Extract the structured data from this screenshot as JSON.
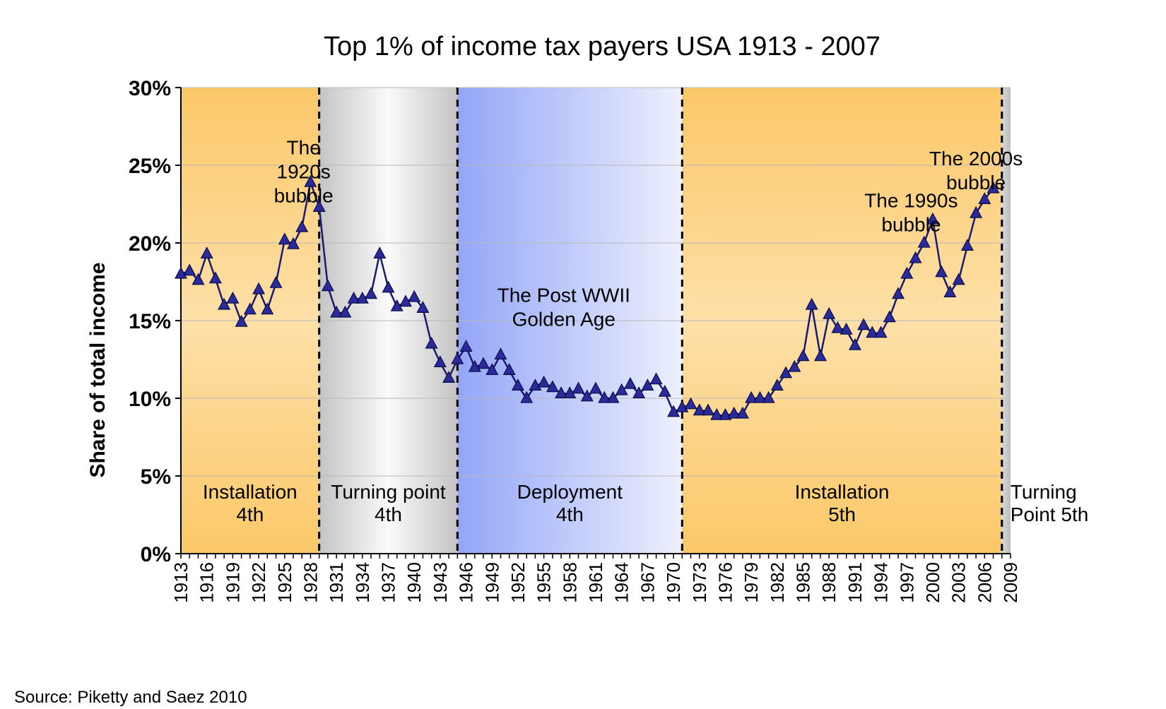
{
  "chart_data": {
    "type": "line",
    "title": "Top 1%  of income tax payers  USA 1913 - 2007",
    "ylabel": "Share of total income",
    "xlabel": "",
    "source": "Source: Piketty and Saez 2010",
    "ylim": [
      0,
      30
    ],
    "xlim": [
      1913,
      2009
    ],
    "yticks": [
      0,
      5,
      10,
      15,
      20,
      25,
      30
    ],
    "ytick_labels": [
      "0%",
      "5%",
      "10%",
      "15%",
      "20%",
      "25%",
      "30%"
    ],
    "xticks": [
      1913,
      1916,
      1919,
      1922,
      1925,
      1928,
      1931,
      1934,
      1937,
      1940,
      1943,
      1946,
      1949,
      1952,
      1955,
      1958,
      1961,
      1964,
      1967,
      1970,
      1973,
      1976,
      1979,
      1982,
      1985,
      1988,
      1991,
      1994,
      1997,
      2000,
      2003,
      2006,
      2009
    ],
    "grid": true,
    "series": [
      {
        "color": "#1a1a6e",
        "marker": "triangle",
        "marker_color": "#2a2a9a",
        "x": [
          1913,
          1914,
          1915,
          1916,
          1917,
          1918,
          1919,
          1920,
          1921,
          1922,
          1923,
          1924,
          1925,
          1926,
          1927,
          1928,
          1929,
          1930,
          1931,
          1932,
          1933,
          1934,
          1935,
          1936,
          1937,
          1938,
          1939,
          1940,
          1941,
          1942,
          1943,
          1944,
          1945,
          1946,
          1947,
          1948,
          1949,
          1950,
          1951,
          1952,
          1953,
          1954,
          1955,
          1956,
          1957,
          1958,
          1959,
          1960,
          1961,
          1962,
          1963,
          1964,
          1965,
          1966,
          1967,
          1968,
          1969,
          1970,
          1971,
          1972,
          1973,
          1974,
          1975,
          1976,
          1977,
          1978,
          1979,
          1980,
          1981,
          1982,
          1983,
          1984,
          1985,
          1986,
          1987,
          1988,
          1989,
          1990,
          1991,
          1992,
          1993,
          1994,
          1995,
          1996,
          1997,
          1998,
          1999,
          2000,
          2001,
          2002,
          2003,
          2004,
          2005,
          2006,
          2007
        ],
        "y": [
          18.0,
          18.2,
          17.6,
          19.3,
          17.7,
          16.0,
          16.4,
          14.9,
          15.7,
          17.0,
          15.7,
          17.4,
          20.2,
          19.9,
          21.0,
          23.9,
          22.3,
          17.2,
          15.5,
          15.5,
          16.4,
          16.4,
          16.7,
          19.3,
          17.1,
          15.9,
          16.2,
          16.5,
          15.8,
          13.5,
          12.3,
          11.3,
          12.5,
          13.3,
          12.0,
          12.2,
          11.8,
          12.8,
          11.8,
          10.8,
          10.0,
          10.8,
          11.0,
          10.7,
          10.3,
          10.3,
          10.6,
          10.1,
          10.6,
          10.0,
          10.0,
          10.5,
          10.9,
          10.3,
          10.8,
          11.2,
          10.4,
          9.1,
          9.4,
          9.6,
          9.2,
          9.2,
          8.9,
          8.9,
          9.0,
          9.0,
          10.0,
          10.0,
          10.0,
          10.8,
          11.6,
          12.0,
          12.7,
          16.0,
          12.7,
          15.4,
          14.5,
          14.4,
          13.4,
          14.7,
          14.2,
          14.2,
          15.2,
          16.7,
          18.0,
          19.0,
          20.0,
          21.5,
          18.1,
          16.8,
          17.6,
          19.8,
          21.9,
          22.8,
          23.5
        ]
      }
    ],
    "phases": [
      {
        "label1": "Installation",
        "label2": "4th",
        "start": 1913,
        "end": 1929,
        "style": "orange"
      },
      {
        "label1": "Turning point",
        "label2": "4th",
        "start": 1929,
        "end": 1945,
        "style": "gray"
      },
      {
        "label1": "Deployment",
        "label2": "4th",
        "start": 1945,
        "end": 1971,
        "style": "blue"
      },
      {
        "label1": "Installation",
        "label2": "5th",
        "start": 1971,
        "end": 2008,
        "style": "orange"
      },
      {
        "label1": "Turning",
        "label2": "Point 5th",
        "start": 2008,
        "end": 2009,
        "style": "gray-right"
      }
    ],
    "phase_boundaries": [
      1929,
      1945,
      1971,
      2008
    ],
    "annotations": [
      {
        "lines": [
          "The",
          "1920s",
          "bubble"
        ],
        "x": 1927.2,
        "y": 25.7
      },
      {
        "lines": [
          "The Post WWII",
          "Golden Age"
        ],
        "x": 1957.3,
        "y": 16.2
      },
      {
        "lines": [
          "The 1990s",
          "bubble"
        ],
        "x": 1997.5,
        "y": 22.3
      },
      {
        "lines": [
          "The 2000s",
          "bubble"
        ],
        "x": 2005.0,
        "y": 25.0
      }
    ]
  }
}
